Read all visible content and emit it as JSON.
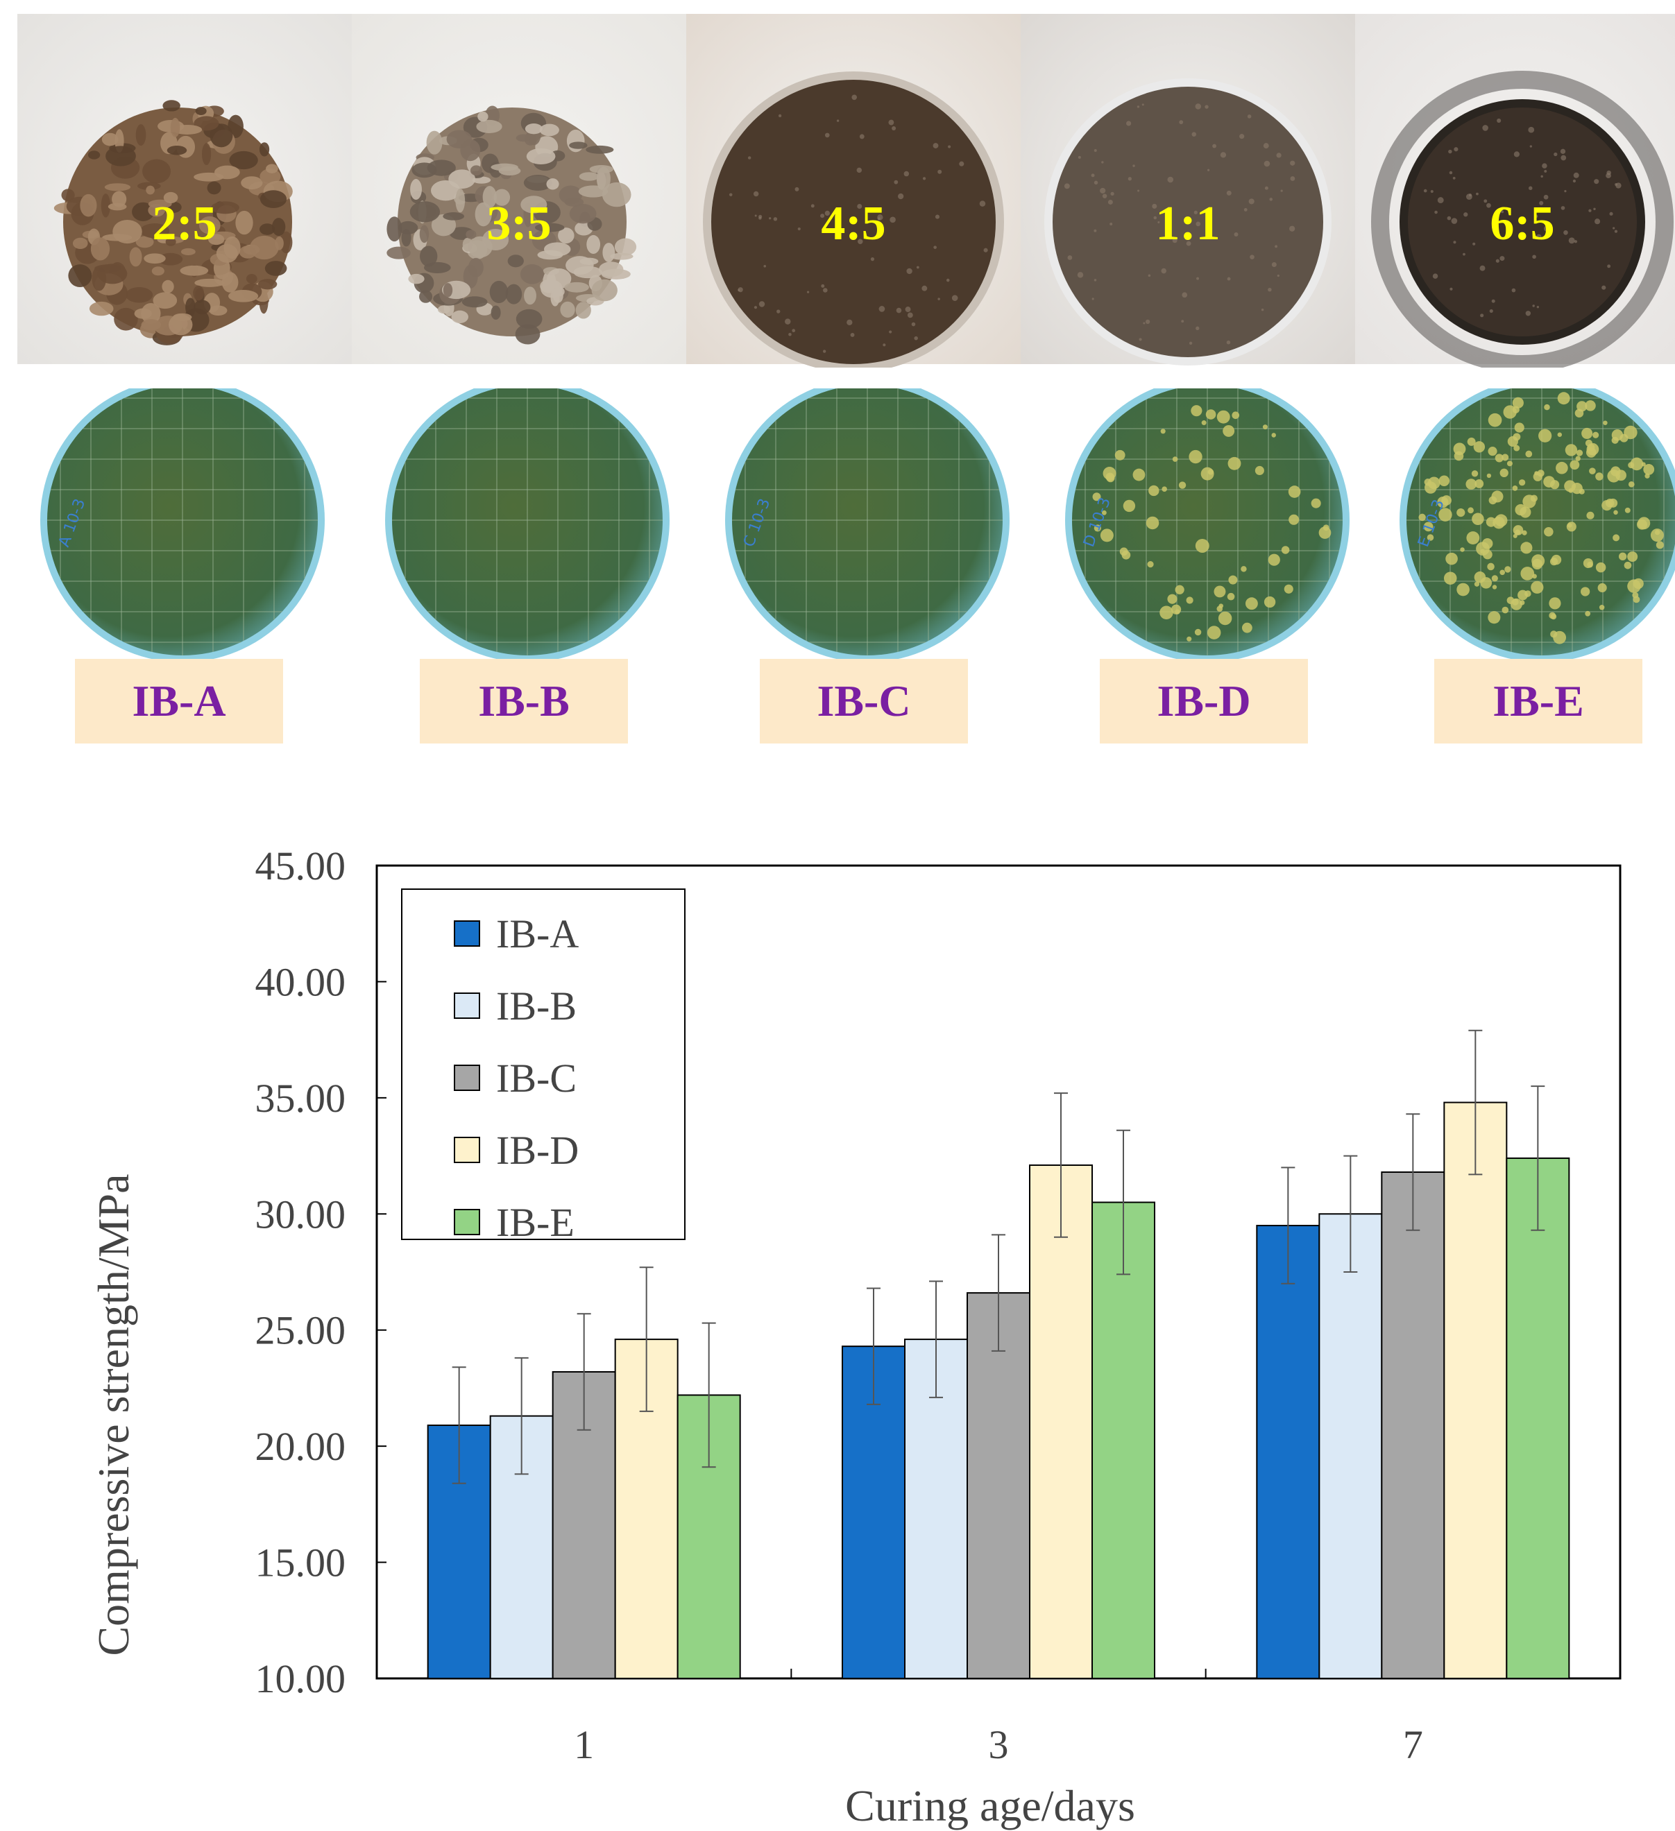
{
  "panels": [
    {
      "ratio": "2:5",
      "label": "IB-A",
      "texture": "lumpy",
      "dish_colonies": 0
    },
    {
      "ratio": "3:5",
      "label": "IB-B",
      "texture": "lumpy",
      "dish_colonies": 0
    },
    {
      "ratio": "4:5",
      "label": "IB-C",
      "texture": "smooth",
      "dish_colonies": 0
    },
    {
      "ratio": "1:1",
      "label": "IB-D",
      "texture": "smooth",
      "dish_colonies": 60
    },
    {
      "ratio": "6:5",
      "label": "IB-E",
      "texture": "smooth",
      "dish_colonies": 160
    }
  ],
  "dish_marks": [
    "A 10-3",
    "",
    "C 10-3",
    "D 10-3",
    "E 10-3"
  ],
  "colors": {
    "ratio_text": "#ffff00",
    "label_text": "#7a1fa2",
    "label_bg": "#fde9c9"
  },
  "chart_data": {
    "type": "bar",
    "xlabel": "Curing age/days",
    "ylabel": "Compressive strength/MPa",
    "categories": [
      "1",
      "3",
      "7"
    ],
    "ylim": [
      10,
      45
    ],
    "yticks": [
      "10.00",
      "15.00",
      "20.00",
      "25.00",
      "30.00",
      "35.00",
      "40.00",
      "45.00"
    ],
    "legend": "top-left",
    "grid": false,
    "series": [
      {
        "name": "IB-A",
        "color": "#1670c8",
        "values": [
          20.9,
          24.3,
          29.5
        ],
        "errors": [
          2.5,
          2.5,
          2.5
        ]
      },
      {
        "name": "IB-B",
        "color": "#dbe9f6",
        "values": [
          21.3,
          24.6,
          30.0
        ],
        "errors": [
          2.5,
          2.5,
          2.5
        ]
      },
      {
        "name": "IB-C",
        "color": "#a6a6a6",
        "values": [
          23.2,
          26.6,
          31.8
        ],
        "errors": [
          2.5,
          2.5,
          2.5
        ]
      },
      {
        "name": "IB-D",
        "color": "#fef2cc",
        "values": [
          24.6,
          32.1,
          34.8
        ],
        "errors": [
          3.1,
          3.1,
          3.1
        ]
      },
      {
        "name": "IB-E",
        "color": "#93d385",
        "values": [
          22.2,
          30.5,
          32.4
        ],
        "errors": [
          3.1,
          3.1,
          3.1
        ]
      }
    ]
  }
}
